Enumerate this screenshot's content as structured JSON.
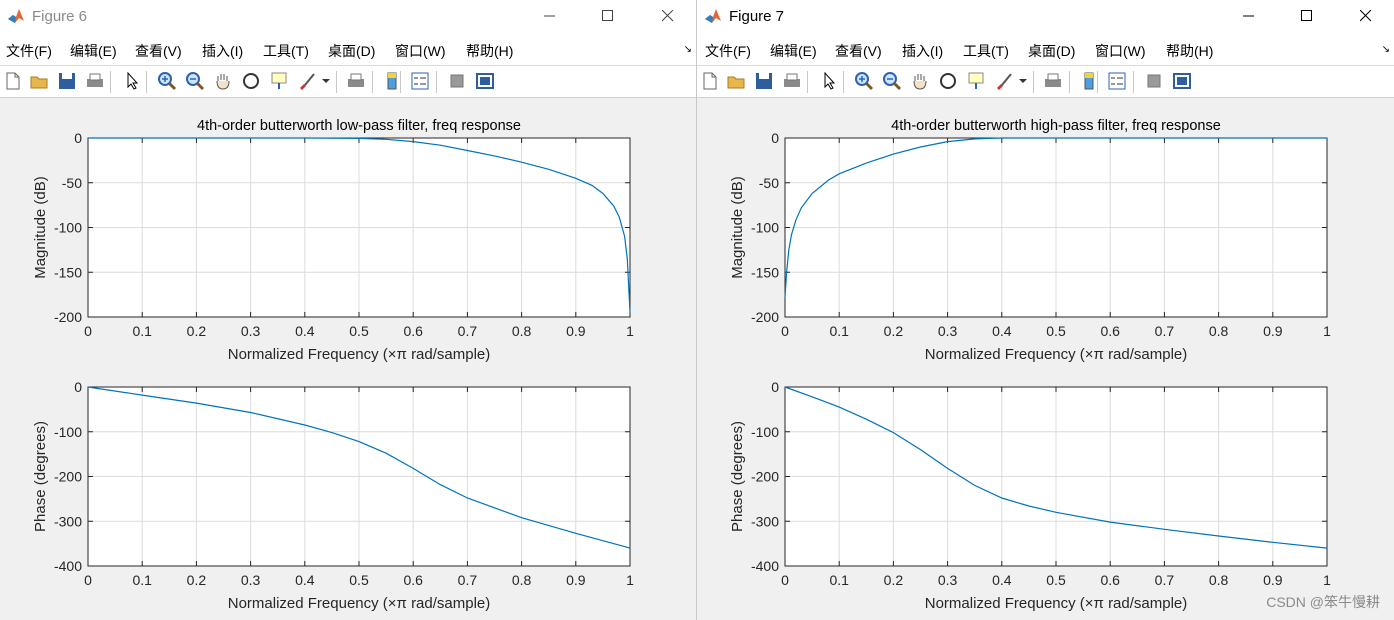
{
  "colors": {
    "line": "#0072bd",
    "grid": "#dcdcdc",
    "axes_bg": "#ffffff"
  },
  "menu_labels": [
    "文件(F)",
    "编辑(E)",
    "查看(V)",
    "插入(I)",
    "工具(T)",
    "桌面(D)",
    "窗口(W)",
    "帮助(H)"
  ],
  "toolbar_icons": [
    "new-figure-icon",
    "open-icon",
    "save-icon",
    "print-icon",
    "pointer-icon",
    "zoom-in-icon",
    "zoom-out-icon",
    "pan-icon",
    "rotate-icon",
    "data-cursor-icon",
    "brush-icon",
    "link-icon",
    "colorbar-icon",
    "legend-icon",
    "hide-plot-tools-icon",
    "show-plot-tools-icon"
  ],
  "watermark": "CSDN @笨牛慢耕",
  "windows": [
    {
      "title": "Figure 6",
      "charts": {
        "chart_data": [
          {
            "type": "line",
            "title": "4th-order butterworth low-pass filter, freq response",
            "xlabel": "Normalized Frequency  (×π rad/sample)",
            "ylabel": "Magnitude (dB)",
            "xlim": [
              0,
              1
            ],
            "ylim": [
              -200,
              0
            ],
            "xticks": [
              "0",
              "0.1",
              "0.2",
              "0.3",
              "0.4",
              "0.5",
              "0.6",
              "0.7",
              "0.8",
              "0.9",
              "1"
            ],
            "yticks": [
              "0",
              "-50",
              "-100",
              "-150",
              "-200"
            ],
            "grid": true,
            "x": [
              0,
              0.1,
              0.2,
              0.3,
              0.4,
              0.5,
              0.55,
              0.6,
              0.65,
              0.7,
              0.75,
              0.8,
              0.85,
              0.9,
              0.93,
              0.95,
              0.97,
              0.98,
              0.99,
              0.995,
              1.0
            ],
            "y": [
              0,
              0,
              0,
              0,
              0,
              -0.5,
              -1.5,
              -4,
              -8,
              -14,
              -20,
              -27,
              -35,
              -45,
              -53,
              -62,
              -76,
              -88,
              -110,
              -135,
              -195
            ]
          },
          {
            "type": "line",
            "title": "",
            "xlabel": "Normalized Frequency  (×π rad/sample)",
            "ylabel": "Phase (degrees)",
            "xlim": [
              0,
              1
            ],
            "ylim": [
              -400,
              0
            ],
            "xticks": [
              "0",
              "0.1",
              "0.2",
              "0.3",
              "0.4",
              "0.5",
              "0.6",
              "0.7",
              "0.8",
              "0.9",
              "1"
            ],
            "yticks": [
              "0",
              "-100",
              "-200",
              "-300",
              "-400"
            ],
            "grid": true,
            "x": [
              0,
              0.1,
              0.2,
              0.3,
              0.4,
              0.45,
              0.5,
              0.55,
              0.6,
              0.65,
              0.7,
              0.8,
              0.9,
              1.0
            ],
            "y": [
              0,
              -18,
              -36,
              -57,
              -85,
              -102,
              -122,
              -148,
              -182,
              -218,
              -248,
              -292,
              -327,
              -360
            ]
          }
        ]
      }
    },
    {
      "title": "Figure 7",
      "charts": {
        "chart_data": [
          {
            "type": "line",
            "title": "4th-order butterworth high-pass filter, freq response",
            "xlabel": "Normalized Frequency  (×π rad/sample)",
            "ylabel": "Magnitude (dB)",
            "xlim": [
              0,
              1
            ],
            "ylim": [
              -200,
              0
            ],
            "xticks": [
              "0",
              "0.1",
              "0.2",
              "0.3",
              "0.4",
              "0.5",
              "0.6",
              "0.7",
              "0.8",
              "0.9",
              "1"
            ],
            "yticks": [
              "0",
              "-50",
              "-100",
              "-150",
              "-200"
            ],
            "grid": true,
            "x": [
              0,
              0.003,
              0.007,
              0.012,
              0.02,
              0.03,
              0.05,
              0.08,
              0.1,
              0.15,
              0.2,
              0.25,
              0.3,
              0.35,
              0.4,
              0.5,
              0.6,
              0.8,
              1.0
            ],
            "y": [
              -178,
              -150,
              -125,
              -108,
              -92,
              -78,
              -62,
              -47,
              -40,
              -28,
              -18,
              -10,
              -4,
              -1,
              0,
              0,
              0,
              0,
              0
            ]
          },
          {
            "type": "line",
            "title": "",
            "xlabel": "Normalized Frequency  (×π rad/sample)",
            "ylabel": "Phase (degrees)",
            "xlim": [
              0,
              1
            ],
            "ylim": [
              -400,
              0
            ],
            "xticks": [
              "0",
              "0.1",
              "0.2",
              "0.3",
              "0.4",
              "0.5",
              "0.6",
              "0.7",
              "0.8",
              "0.9",
              "1"
            ],
            "yticks": [
              "0",
              "-100",
              "-200",
              "-300",
              "-400"
            ],
            "grid": true,
            "x": [
              0,
              0.05,
              0.1,
              0.15,
              0.2,
              0.25,
              0.3,
              0.35,
              0.4,
              0.45,
              0.5,
              0.6,
              0.7,
              0.8,
              0.9,
              1.0
            ],
            "y": [
              0,
              -22,
              -45,
              -72,
              -102,
              -140,
              -182,
              -220,
              -248,
              -266,
              -280,
              -302,
              -318,
              -333,
              -347,
              -360
            ]
          }
        ]
      }
    }
  ]
}
